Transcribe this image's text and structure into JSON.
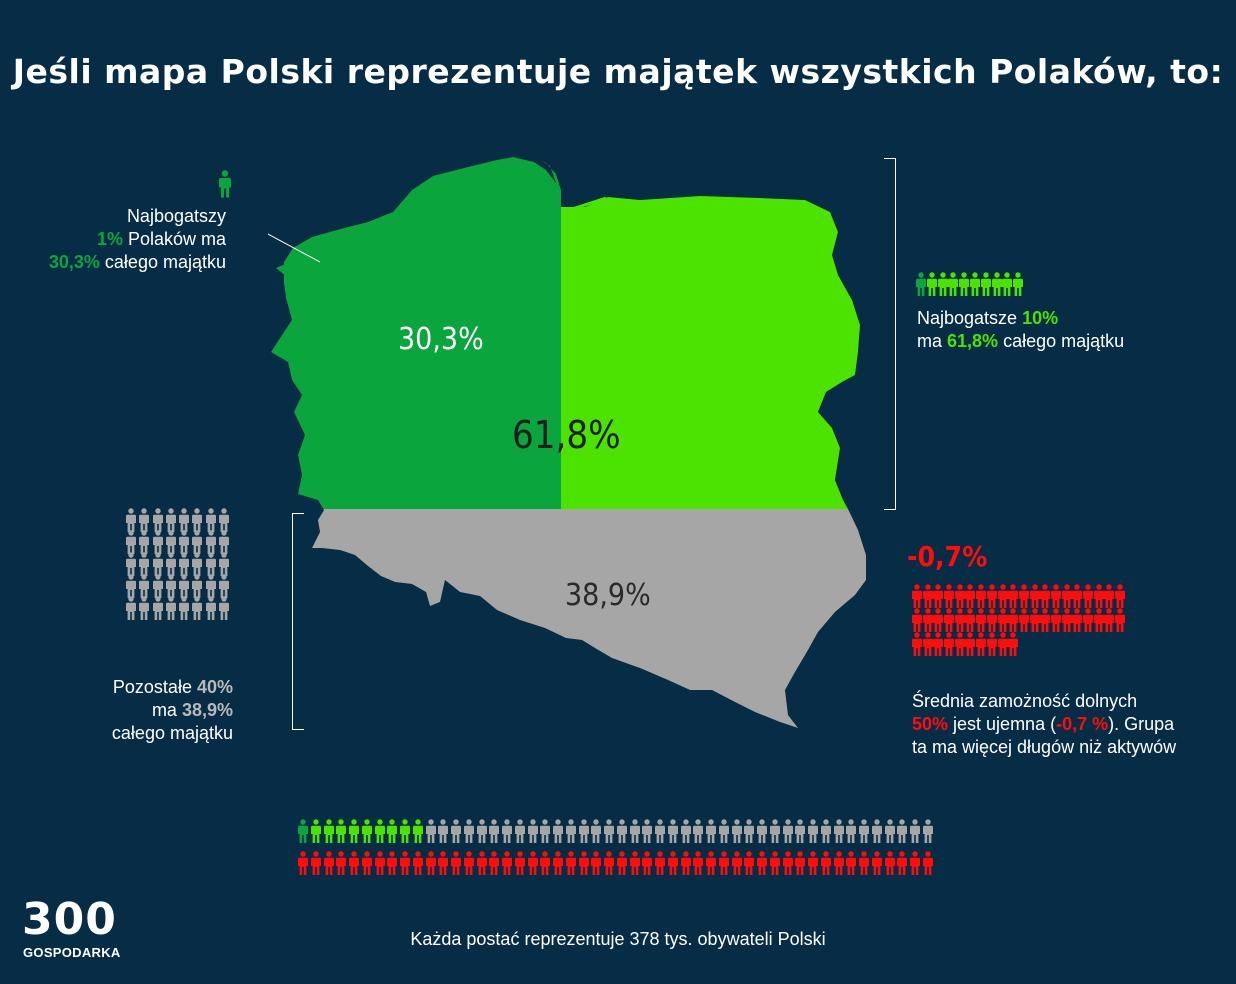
{
  "title": "Jeśli mapa Polski reprezentuje majątek wszystkich Polaków, to:",
  "colors": {
    "background": "#062d45",
    "top1": "#0aa53c",
    "top10": "#4ce300",
    "rest": "#a6a6a6",
    "bottom50": "#ff0d0d"
  },
  "map": {
    "top1_label": "30,3%",
    "top10_label": "61,8%",
    "rest_label": "38,9%"
  },
  "top1_callout": {
    "line1": "Najbogatszy",
    "pct": "1%",
    "line2_rest": " Polaków ma",
    "share": "30,3%",
    "line3_rest": " całego majątku"
  },
  "top10_callout": {
    "line1_a": "Najbogatsze ",
    "pct": "10%",
    "line2_a": "ma ",
    "share": "61,8%",
    "line2_rest": " całego majątku"
  },
  "rest_callout": {
    "line1_a": "Pozostałe ",
    "pct": "40%",
    "line2_a": "ma ",
    "share": "38,9%",
    "line3": "całego majątku"
  },
  "bottom_callout": {
    "big": "-0,7%",
    "pct": "50%",
    "line1": "Średnia zamożność dolnych",
    "line2_mid": " jest ujemna (",
    "neg": "-0,7 %",
    "line2_end": "). Grupa",
    "line3": "ta ma więcej długów niż aktywów"
  },
  "people_per_icon": "378 tys.",
  "caption": "Każda postać reprezentuje 378 tys. obywateli Polski",
  "logo": {
    "number": "300",
    "name": "GOSPODARKA"
  },
  "icon_counts": {
    "top1": 1,
    "top10": 9,
    "rest": 40,
    "bottom50": 50
  }
}
